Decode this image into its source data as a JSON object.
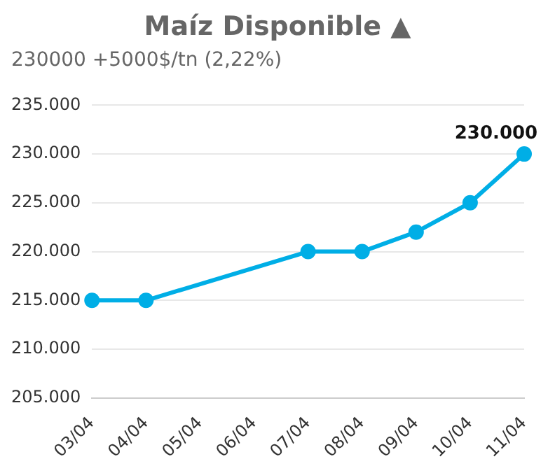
{
  "chart_data": {
    "type": "line",
    "title": "Maíz Disponible ▲",
    "subtitle": "230000 +5000$/tn (2,22%)",
    "categories": [
      "03/04",
      "04/04",
      "05/04",
      "06/04",
      "07/04",
      "08/04",
      "09/04",
      "10/04",
      "11/04"
    ],
    "series": [
      {
        "color": "#00aee6",
        "values": [
          215000,
          215000,
          null,
          null,
          220000,
          220000,
          222000,
          225000,
          230000
        ],
        "value_labels": [
          null,
          null,
          null,
          null,
          null,
          null,
          null,
          null,
          "230.000"
        ]
      }
    ],
    "ylim": [
      205000,
      235000
    ],
    "yticks": [
      {
        "value": 205000,
        "label": "205.000"
      },
      {
        "value": 210000,
        "label": "210.000"
      },
      {
        "value": 215000,
        "label": "215.000"
      },
      {
        "value": 220000,
        "label": "220.000"
      },
      {
        "value": 225000,
        "label": "225.000"
      },
      {
        "value": 230000,
        "label": "230.000"
      },
      {
        "value": 235000,
        "label": "235.000"
      }
    ],
    "grid": "y",
    "marker": "circle",
    "line_style": "solid",
    "legend": false
  }
}
